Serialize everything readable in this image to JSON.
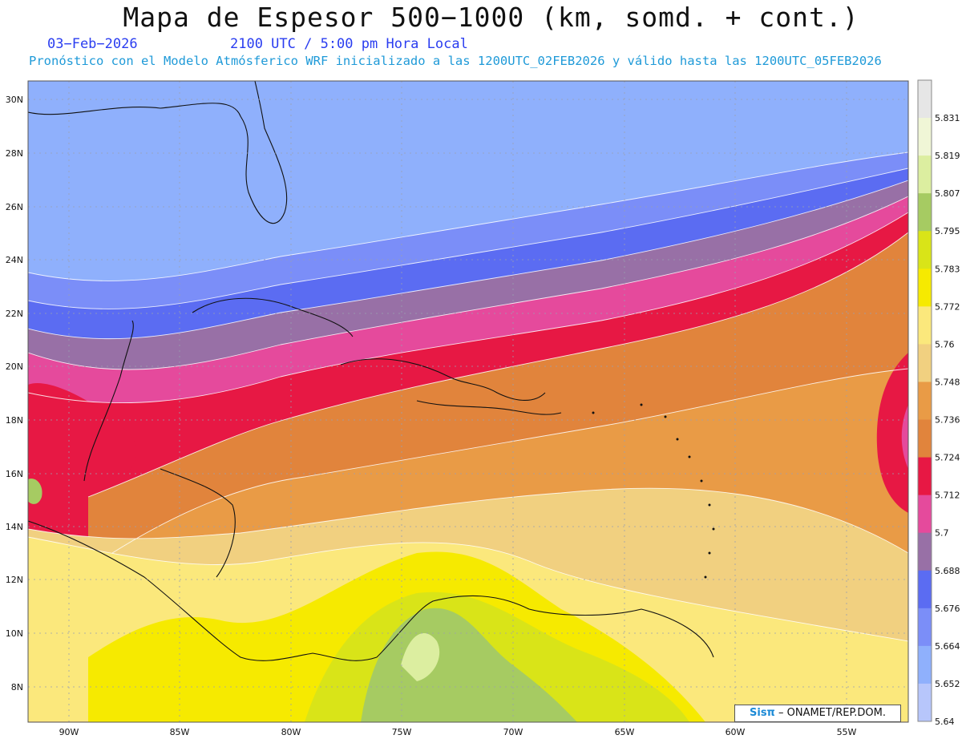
{
  "header": {
    "title": "Mapa de Espesor 500−1000 (km, somd. + cont.)",
    "date": "03−Feb−2026",
    "time": "2100 UTC / 5:00 pm Hora Local",
    "description": "Pronóstico con el Modelo Atmósferico WRF inicializado a las 1200UTC_02FEB2026 y válido hasta las  1200UTC_05FEB2026"
  },
  "axes": {
    "lat_labels": [
      "30N",
      "28N",
      "26N",
      "24N",
      "22N",
      "20N",
      "18N",
      "16N",
      "14N",
      "12N",
      "10N",
      "8N"
    ],
    "lon_labels": [
      "90W",
      "85W",
      "80W",
      "75W",
      "70W",
      "65W",
      "60W",
      "55W"
    ]
  },
  "legend": {
    "levels": [
      "5.831",
      "5.819",
      "5.807",
      "5.795",
      "5.783",
      "5.772",
      "5.76",
      "5.748",
      "5.736",
      "5.724",
      "5.712",
      "5.7",
      "5.688",
      "5.676",
      "5.664",
      "5.652",
      "5.64"
    ],
    "colors": [
      "#e6e6e6",
      "#f0f6d6",
      "#dceea0",
      "#a6cb62",
      "#d9e418",
      "#f6ea00",
      "#fbe87c",
      "#f1d080",
      "#e99b46",
      "#e1843c",
      "#e71844",
      "#e54a9c",
      "#9870a6",
      "#5b6cf2",
      "#7b8ef8",
      "#8fb0fc",
      "#b7c6fb"
    ]
  },
  "credit": {
    "sis": "Sisπ",
    "text": " – ONAMET/REP.DOM."
  }
}
